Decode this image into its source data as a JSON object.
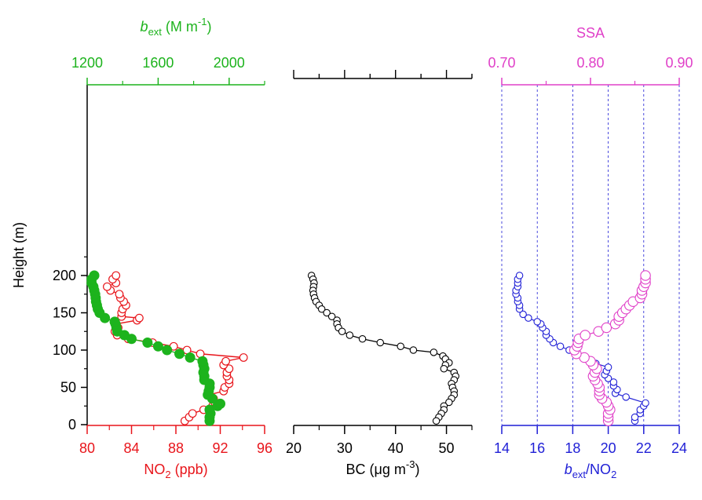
{
  "chart_data": [
    {
      "type": "scatter",
      "panel": "left",
      "ylabel": "Height (m)",
      "yticks": [
        "0",
        "50",
        "100",
        "150",
        "200"
      ],
      "ylim": [
        0,
        230
      ],
      "bottom_axis": {
        "label": "NO",
        "label_sub": "2",
        "label_tail": " (ppb)",
        "color": "#e8151b",
        "xlim": [
          80,
          96
        ],
        "ticks": [
          "80",
          "84",
          "88",
          "92",
          "96"
        ]
      },
      "top_axis": {
        "label_italic": "b",
        "label_sub": "ext",
        "label_tail": " (M m",
        "label_sup": "-1",
        "label_close": ")",
        "color": "#1db31d",
        "xlim": [
          1200,
          2200
        ],
        "ticks": [
          "1200",
          "1600",
          "2000"
        ]
      },
      "series": [
        {
          "axis": "bottom",
          "color": "#e8151b",
          "marker": "open-circle",
          "points": [
            [
              88.8,
              5
            ],
            [
              89.2,
              10
            ],
            [
              89.5,
              15
            ],
            [
              90.5,
              20
            ],
            [
              91.3,
              25
            ],
            [
              91.5,
              30
            ],
            [
              91.4,
              35
            ],
            [
              91.0,
              40
            ],
            [
              92.3,
              45
            ],
            [
              92.4,
              50
            ],
            [
              92.8,
              55
            ],
            [
              92.8,
              60
            ],
            [
              92.6,
              65
            ],
            [
              92.6,
              70
            ],
            [
              92.8,
              75
            ],
            [
              92.3,
              80
            ],
            [
              92.5,
              85
            ],
            [
              94.1,
              90
            ],
            [
              90.2,
              95
            ],
            [
              89.0,
              100
            ],
            [
              87.8,
              105
            ],
            [
              85.9,
              110
            ],
            [
              83.7,
              115
            ],
            [
              82.7,
              120
            ],
            [
              82.5,
              125
            ],
            [
              82.8,
              130
            ],
            [
              82.6,
              135
            ],
            [
              84.5,
              140
            ],
            [
              84.7,
              143
            ],
            [
              83.1,
              145
            ],
            [
              83.1,
              150
            ],
            [
              83.2,
              155
            ],
            [
              83.5,
              160
            ],
            [
              83.3,
              165
            ],
            [
              83.0,
              170
            ],
            [
              82.9,
              175
            ],
            [
              82.1,
              180
            ],
            [
              81.8,
              185
            ],
            [
              82.6,
              190
            ],
            [
              82.3,
              195
            ],
            [
              82.6,
              200
            ]
          ]
        },
        {
          "axis": "top",
          "color": "#1db31d",
          "marker": "filled-circle",
          "points": [
            [
              1890,
              5
            ],
            [
              1890,
              10
            ],
            [
              1895,
              15
            ],
            [
              1890,
              20
            ],
            [
              1935,
              25
            ],
            [
              1950,
              28
            ],
            [
              1905,
              35
            ],
            [
              1880,
              40
            ],
            [
              1885,
              45
            ],
            [
              1890,
              50
            ],
            [
              1890,
              55
            ],
            [
              1860,
              60
            ],
            [
              1860,
              65
            ],
            [
              1855,
              70
            ],
            [
              1860,
              75
            ],
            [
              1855,
              80
            ],
            [
              1850,
              85
            ],
            [
              1780,
              90
            ],
            [
              1720,
              95
            ],
            [
              1650,
              100
            ],
            [
              1600,
              105
            ],
            [
              1540,
              110
            ],
            [
              1450,
              115
            ],
            [
              1410,
              120
            ],
            [
              1370,
              125
            ],
            [
              1365,
              130
            ],
            [
              1360,
              135
            ],
            [
              1355,
              138
            ],
            [
              1300,
              143
            ],
            [
              1270,
              150
            ],
            [
              1260,
              155
            ],
            [
              1255,
              160
            ],
            [
              1250,
              165
            ],
            [
              1248,
              170
            ],
            [
              1245,
              175
            ],
            [
              1240,
              180
            ],
            [
              1235,
              185
            ],
            [
              1225,
              190
            ],
            [
              1225,
              195
            ],
            [
              1240,
              200
            ]
          ]
        }
      ]
    },
    {
      "type": "line",
      "panel": "middle",
      "xlim": [
        20,
        55
      ],
      "ylim": [
        0,
        230
      ],
      "bottom_axis": {
        "label": "BC (μg m",
        "label_sup": "-3",
        "label_close": ")",
        "color": "#000000",
        "ticks": [
          "20",
          "30",
          "40",
          "50"
        ]
      },
      "top_axis": {
        "ticks": []
      },
      "series": [
        {
          "color": "#000000",
          "marker": "open-circle",
          "points": [
            [
              23.5,
              200
            ],
            [
              23.8,
              195
            ],
            [
              24.0,
              190
            ],
            [
              23.9,
              185
            ],
            [
              23.8,
              180
            ],
            [
              23.9,
              175
            ],
            [
              24.1,
              170
            ],
            [
              24.4,
              165
            ],
            [
              25.0,
              160
            ],
            [
              25.5,
              155
            ],
            [
              26.5,
              150
            ],
            [
              27.5,
              145
            ],
            [
              28.5,
              140
            ],
            [
              28.5,
              135
            ],
            [
              28.8,
              130
            ],
            [
              29.5,
              125
            ],
            [
              31.0,
              120
            ],
            [
              33.5,
              115
            ],
            [
              37.0,
              110
            ],
            [
              41.0,
              105
            ],
            [
              43.5,
              100
            ],
            [
              47.5,
              97
            ],
            [
              49.3,
              92
            ],
            [
              49.8,
              88
            ],
            [
              50.5,
              83
            ],
            [
              49.8,
              80
            ],
            [
              49.5,
              75
            ],
            [
              51.5,
              70
            ],
            [
              51.8,
              65
            ],
            [
              51.5,
              60
            ],
            [
              51.0,
              55
            ],
            [
              51.2,
              50
            ],
            [
              51.5,
              45
            ],
            [
              51.5,
              40
            ],
            [
              51.0,
              35
            ],
            [
              50.5,
              30
            ],
            [
              49.5,
              25
            ],
            [
              49.5,
              20
            ],
            [
              49.0,
              15
            ],
            [
              48.5,
              10
            ],
            [
              48.0,
              5
            ]
          ]
        }
      ]
    },
    {
      "type": "scatter",
      "panel": "right",
      "ylim": [
        0,
        230
      ],
      "bottom_axis": {
        "label_italic": "b",
        "label_sub": "ext",
        "label_tail": "/NO",
        "label_sub2": "2",
        "color": "#1f1fd6",
        "xlim": [
          14,
          24
        ],
        "ticks": [
          "14",
          "16",
          "18",
          "20",
          "22",
          "24"
        ]
      },
      "top_axis": {
        "label": "SSA",
        "color": "#e040c8",
        "xlim": [
          0.7,
          0.9
        ],
        "ticks": [
          "0.70",
          "0.80",
          "0.90"
        ]
      },
      "grid": "vertical dashed",
      "series": [
        {
          "axis": "bottom",
          "color": "#1f1fd6",
          "marker": "open-circle",
          "points": [
            [
              21.5,
              5
            ],
            [
              21.5,
              10
            ],
            [
              21.8,
              15
            ],
            [
              21.8,
              20
            ],
            [
              22.0,
              25
            ],
            [
              22.1,
              29
            ],
            [
              21.0,
              37
            ],
            [
              20.4,
              42
            ],
            [
              20.5,
              47
            ],
            [
              20.3,
              52
            ],
            [
              20.3,
              57
            ],
            [
              20.0,
              62
            ],
            [
              19.8,
              67
            ],
            [
              19.9,
              72
            ],
            [
              20.0,
              77
            ],
            [
              19.3,
              82
            ],
            [
              18.9,
              87
            ],
            [
              18.7,
              90
            ],
            [
              18.2,
              96
            ],
            [
              17.8,
              100
            ],
            [
              17.3,
              105
            ],
            [
              16.9,
              110
            ],
            [
              16.7,
              115
            ],
            [
              16.5,
              120
            ],
            [
              16.5,
              125
            ],
            [
              16.3,
              130
            ],
            [
              16.2,
              135
            ],
            [
              16.0,
              138
            ],
            [
              15.5,
              143
            ],
            [
              15.2,
              148
            ],
            [
              15.0,
              155
            ],
            [
              15.0,
              160
            ],
            [
              14.9,
              165
            ],
            [
              14.9,
              170
            ],
            [
              14.8,
              175
            ],
            [
              14.8,
              180
            ],
            [
              14.9,
              185
            ],
            [
              14.9,
              190
            ],
            [
              14.9,
              195
            ],
            [
              15.0,
              200
            ]
          ]
        },
        {
          "axis": "top",
          "color": "#e040c8",
          "marker": "open-circle-large",
          "points": [
            [
              0.82,
              5
            ],
            [
              0.82,
              10
            ],
            [
              0.82,
              15
            ],
            [
              0.822,
              20
            ],
            [
              0.82,
              25
            ],
            [
              0.818,
              30
            ],
            [
              0.813,
              35
            ],
            [
              0.81,
              40
            ],
            [
              0.81,
              45
            ],
            [
              0.81,
              50
            ],
            [
              0.808,
              55
            ],
            [
              0.805,
              60
            ],
            [
              0.803,
              65
            ],
            [
              0.805,
              70
            ],
            [
              0.807,
              75
            ],
            [
              0.803,
              80
            ],
            [
              0.8,
              85
            ],
            [
              0.793,
              90
            ],
            [
              0.784,
              95
            ],
            [
              0.782,
              100
            ],
            [
              0.785,
              105
            ],
            [
              0.786,
              110
            ],
            [
              0.787,
              115
            ],
            [
              0.794,
              120
            ],
            [
              0.809,
              125
            ],
            [
              0.818,
              130
            ],
            [
              0.828,
              135
            ],
            [
              0.832,
              140
            ],
            [
              0.832,
              145
            ],
            [
              0.836,
              150
            ],
            [
              0.84,
              155
            ],
            [
              0.844,
              160
            ],
            [
              0.848,
              165
            ],
            [
              0.856,
              170
            ],
            [
              0.858,
              175
            ],
            [
              0.858,
              180
            ],
            [
              0.86,
              185
            ],
            [
              0.862,
              190
            ],
            [
              0.862,
              195
            ],
            [
              0.862,
              200
            ]
          ]
        }
      ]
    }
  ]
}
